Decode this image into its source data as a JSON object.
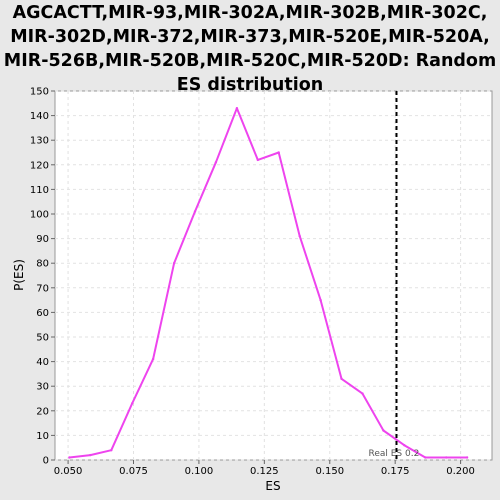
{
  "chart_data": {
    "type": "line",
    "title_lines": [
      "AGCACTT,MIR-93,MIR-302A,MIR-302B,MIR-302C,",
      "MIR-302D,MIR-372,MIR-373,MIR-520E,MIR-520A,",
      "MIR-526B,MIR-520B,MIR-520C,MIR-520D: Random",
      "ES distribution"
    ],
    "xlabel": "ES",
    "ylabel": "P(ES)",
    "xlim": [
      0.045,
      0.212
    ],
    "ylim": [
      0,
      150
    ],
    "x_ticks": [
      "0.050",
      "0.075",
      "0.100",
      "0.125",
      "0.150",
      "0.175",
      "0.200"
    ],
    "y_ticks": [
      "0",
      "10",
      "20",
      "30",
      "40",
      "50",
      "60",
      "70",
      "80",
      "90",
      "100",
      "110",
      "120",
      "130",
      "140",
      "150"
    ],
    "grid": true,
    "series": [
      {
        "color": "#ee44ee",
        "x": [
          0.0505,
          0.0585,
          0.0665,
          0.0745,
          0.0825,
          0.0905,
          0.0985,
          0.1065,
          0.1145,
          0.1225,
          0.1305,
          0.1385,
          0.1465,
          0.1545,
          0.1625,
          0.1705,
          0.1785,
          0.1865,
          0.1945,
          0.2025
        ],
        "y": [
          1,
          2,
          4,
          23,
          41,
          80,
          101,
          121,
          143,
          122,
          125,
          91,
          65,
          33,
          27,
          12,
          6,
          1,
          1,
          1
        ]
      }
    ],
    "marker_line": {
      "x": 0.1755,
      "label": "Real ES 0.2",
      "style": "dashed",
      "color": "#000000"
    }
  }
}
